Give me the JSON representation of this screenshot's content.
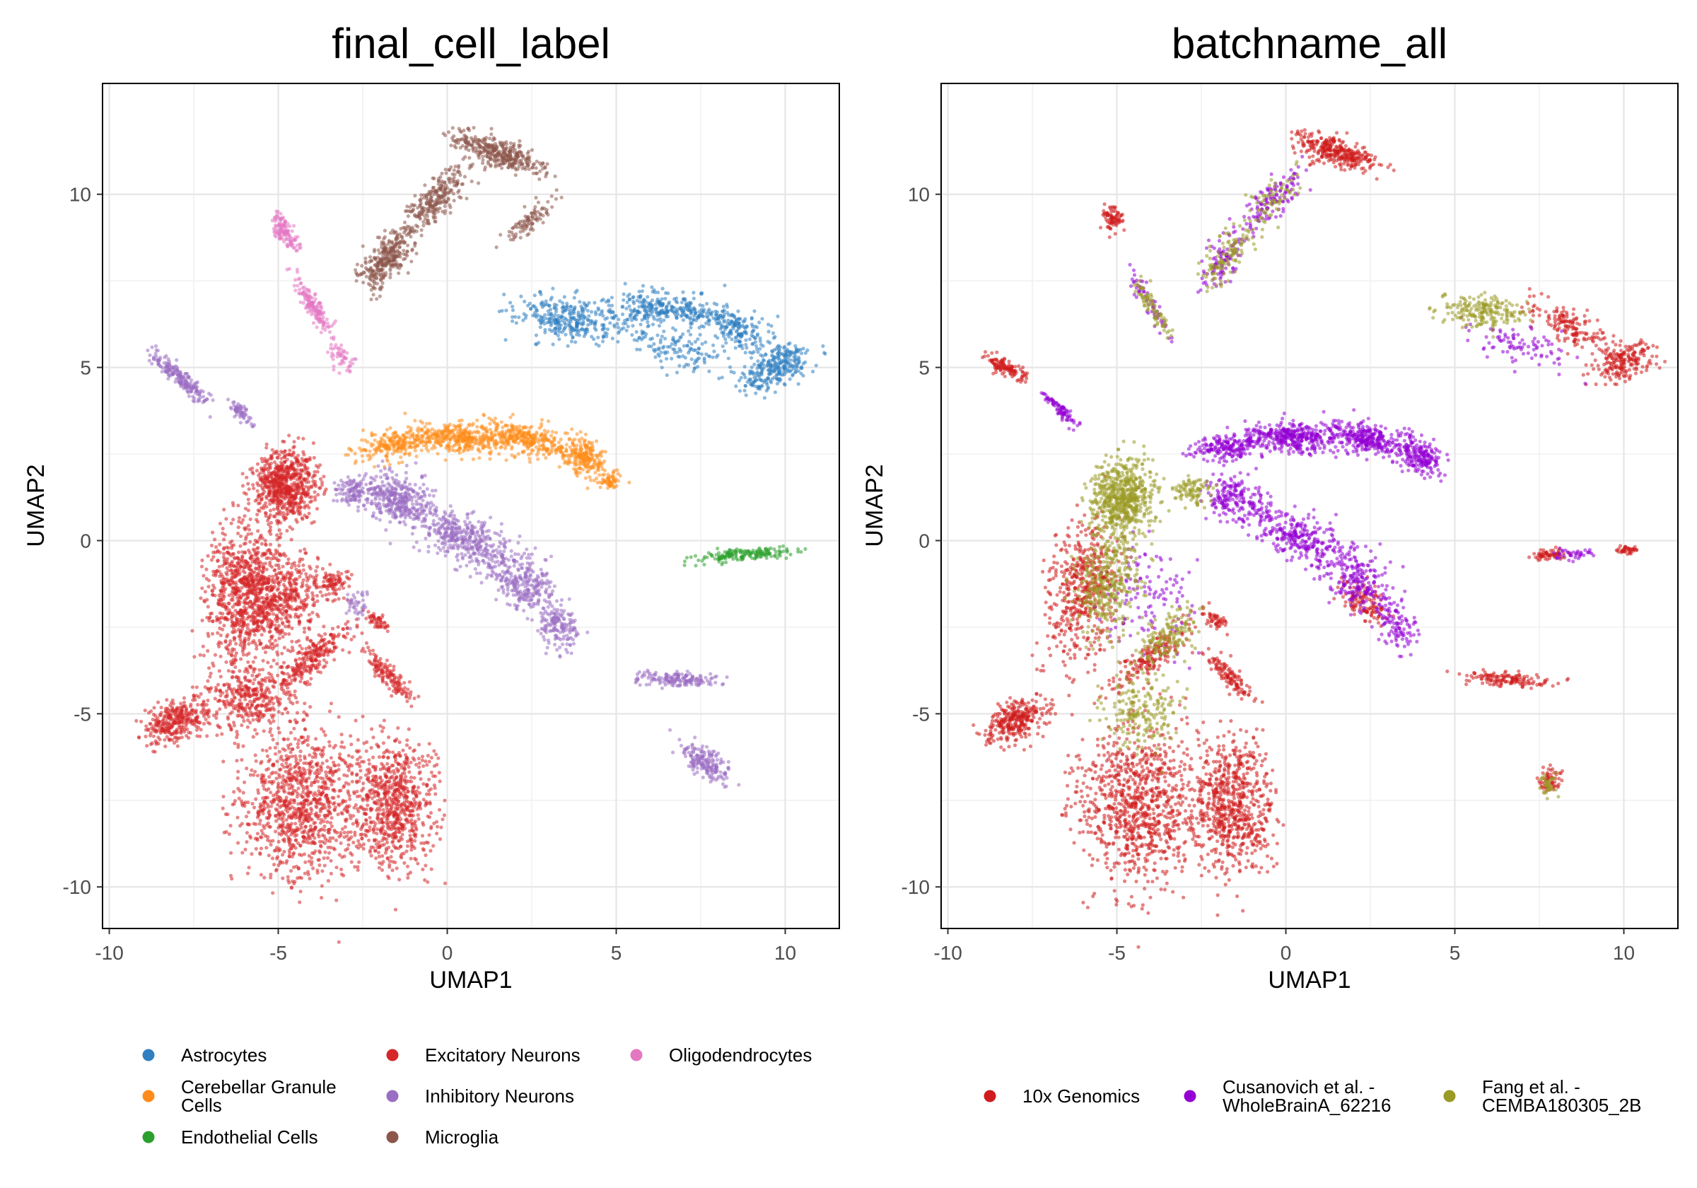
{
  "chart_data": [
    {
      "type": "scatter",
      "title": "final_cell_label",
      "xlabel": "UMAP1",
      "ylabel": "UMAP2",
      "xlim": [
        -10.2,
        11.6
      ],
      "ylim": [
        -11.2,
        13.2
      ],
      "xticks": [
        -10,
        -5,
        0,
        5,
        10
      ],
      "yticks": [
        -10,
        -5,
        0,
        5,
        10
      ],
      "xtick_labels": [
        "-10",
        "-5",
        "0",
        "5",
        "10"
      ],
      "ytick_labels": [
        "-10",
        "-5",
        "0",
        "5",
        "10"
      ],
      "grid": true,
      "legend_position": "bottom",
      "series": [
        {
          "name": "Astrocytes",
          "color": "#2f7fc1",
          "regions": [
            [
              3.6,
              6.4,
              1.6,
              0.55,
              -8,
              320
            ],
            [
              6.3,
              6.7,
              1.4,
              0.45,
              -5,
              260
            ],
            [
              8.4,
              6.2,
              1.2,
              0.45,
              -25,
              220
            ],
            [
              9.9,
              5.1,
              0.5,
              0.9,
              -75,
              220
            ],
            [
              6.9,
              5.5,
              1.5,
              0.5,
              -15,
              120
            ],
            [
              9.1,
              4.6,
              0.6,
              0.45,
              0,
              60
            ]
          ]
        },
        {
          "name": "Cerebellar Granule Cells",
          "color": "#ff8c1a",
          "regions": [
            [
              -1.6,
              2.75,
              1.1,
              0.35,
              10,
              220
            ],
            [
              0.3,
              3.0,
              1.2,
              0.4,
              -3,
              340
            ],
            [
              2.3,
              2.95,
              1.1,
              0.4,
              -12,
              300
            ],
            [
              4.0,
              2.4,
              0.7,
              0.45,
              -35,
              220
            ],
            [
              4.8,
              1.75,
              0.25,
              0.35,
              -80,
              60
            ]
          ]
        },
        {
          "name": "Endothelial Cells",
          "color": "#2ca02c",
          "regions": [
            [
              8.8,
              -0.4,
              1.3,
              0.16,
              5,
              170
            ]
          ]
        },
        {
          "name": "Excitatory Neurons",
          "color": "#d62728",
          "regions": [
            [
              -4.8,
              1.6,
              0.9,
              0.9,
              0,
              700
            ],
            [
              -6.0,
              -1.4,
              1.0,
              1.9,
              -10,
              760
            ],
            [
              -5.0,
              -1.8,
              1.1,
              1.3,
              -30,
              500
            ],
            [
              -5.8,
              -4.6,
              1.2,
              0.8,
              0,
              340
            ],
            [
              -4.4,
              -7.6,
              1.6,
              2.0,
              0,
              1000
            ],
            [
              -1.6,
              -7.6,
              1.1,
              1.7,
              0,
              750
            ],
            [
              -8.0,
              -5.2,
              0.9,
              0.5,
              25,
              320
            ],
            [
              -4.0,
              -3.4,
              1.3,
              0.4,
              40,
              260
            ],
            [
              -1.7,
              -3.9,
              0.9,
              0.25,
              -45,
              140
            ],
            [
              -2.1,
              -2.3,
              0.4,
              0.2,
              -40,
              50
            ],
            [
              -3.4,
              -1.2,
              0.5,
              0.35,
              0,
              90
            ]
          ]
        },
        {
          "name": "Inhibitory Neurons",
          "color": "#9a6ec2",
          "regions": [
            [
              -7.9,
              4.7,
              1.1,
              0.2,
              -40,
              200
            ],
            [
              -6.1,
              3.7,
              0.45,
              0.15,
              -45,
              60
            ],
            [
              -1.5,
              1.2,
              0.9,
              0.6,
              -20,
              360
            ],
            [
              0.4,
              0.1,
              1.3,
              0.6,
              -25,
              380
            ],
            [
              2.2,
              -1.2,
              1.1,
              0.7,
              -35,
              300
            ],
            [
              3.3,
              -2.5,
              0.7,
              0.5,
              -60,
              150
            ],
            [
              -2.8,
              1.4,
              0.5,
              0.35,
              0,
              110
            ],
            [
              6.8,
              -4.0,
              0.2,
              1.1,
              88,
              160
            ],
            [
              7.6,
              -6.4,
              0.35,
              0.7,
              60,
              180
            ],
            [
              -2.7,
              -1.9,
              0.3,
              0.4,
              -30,
              40
            ]
          ]
        },
        {
          "name": "Microglia",
          "color": "#8c564b",
          "regions": [
            [
              -1.8,
              8.1,
              0.9,
              0.45,
              50,
              300
            ],
            [
              -0.4,
              9.8,
              1.2,
              0.4,
              48,
              260
            ],
            [
              1.5,
              11.2,
              1.3,
              0.35,
              -18,
              360
            ],
            [
              2.4,
              9.2,
              0.9,
              0.25,
              40,
              90
            ]
          ]
        },
        {
          "name": "Oligodendrocytes",
          "color": "#e377c2",
          "regions": [
            [
              -4.8,
              8.9,
              0.5,
              0.25,
              -60,
              120
            ],
            [
              -4.0,
              6.8,
              1.0,
              0.2,
              -58,
              150
            ],
            [
              -3.1,
              5.3,
              0.4,
              0.25,
              -40,
              50
            ]
          ]
        }
      ]
    },
    {
      "type": "scatter",
      "title": "batchname_all",
      "xlabel": "UMAP1",
      "ylabel": "UMAP2",
      "xlim": [
        -10.2,
        11.6
      ],
      "ylim": [
        -11.2,
        13.2
      ],
      "xticks": [
        -10,
        -5,
        0,
        5,
        10
      ],
      "yticks": [
        -10,
        -5,
        0,
        5,
        10
      ],
      "xtick_labels": [
        "-10",
        "-5",
        "0",
        "5",
        "10"
      ],
      "ytick_labels": [
        "-10",
        "-5",
        "0",
        "5",
        "10"
      ],
      "grid": true,
      "legend_position": "bottom",
      "series": [
        {
          "name": "10x Genomics",
          "color": "#d01c1c",
          "regions": [
            [
              -6.0,
              -1.4,
              1.0,
              1.9,
              -10,
              500
            ],
            [
              -4.4,
              -7.6,
              1.6,
              2.0,
              0,
              900
            ],
            [
              -1.6,
              -7.6,
              1.1,
              1.7,
              0,
              700
            ],
            [
              -8.0,
              -5.2,
              0.9,
              0.5,
              25,
              300
            ],
            [
              -4.0,
              -3.4,
              1.3,
              0.4,
              40,
              180
            ],
            [
              -1.7,
              -3.9,
              0.9,
              0.25,
              -45,
              120
            ],
            [
              1.5,
              11.2,
              1.3,
              0.35,
              -18,
              330
            ],
            [
              -5.1,
              9.3,
              0.3,
              0.3,
              0,
              80
            ],
            [
              -8.3,
              5.0,
              0.6,
              0.2,
              -30,
              120
            ],
            [
              9.9,
              5.1,
              0.5,
              0.9,
              -75,
              200
            ],
            [
              8.4,
              6.2,
              1.2,
              0.45,
              -25,
              160
            ],
            [
              6.6,
              -4.0,
              0.2,
              1.1,
              88,
              140
            ],
            [
              7.8,
              -0.4,
              0.5,
              0.15,
              5,
              60
            ],
            [
              10.1,
              -0.3,
              0.3,
              0.12,
              0,
              40
            ],
            [
              2.3,
              -1.8,
              0.7,
              0.4,
              -40,
              120
            ],
            [
              -2.1,
              -2.3,
              0.4,
              0.2,
              -40,
              50
            ],
            [
              7.8,
              -6.9,
              0.3,
              0.35,
              0,
              60
            ]
          ]
        },
        {
          "name": "Cusanovich et al. - WholeBrainA_62216",
          "color": "#9400d3",
          "regions": [
            [
              -1.6,
              2.75,
              1.1,
              0.35,
              10,
              220
            ],
            [
              0.3,
              3.0,
              1.2,
              0.4,
              -3,
              340
            ],
            [
              2.3,
              2.95,
              1.1,
              0.4,
              -12,
              300
            ],
            [
              4.0,
              2.4,
              0.7,
              0.45,
              -35,
              200
            ],
            [
              -1.5,
              1.2,
              0.9,
              0.6,
              -20,
              200
            ],
            [
              0.4,
              0.1,
              1.3,
              0.6,
              -25,
              280
            ],
            [
              2.2,
              -1.2,
              1.1,
              0.7,
              -35,
              220
            ],
            [
              3.3,
              -2.5,
              0.7,
              0.5,
              -60,
              100
            ],
            [
              -6.7,
              3.8,
              0.7,
              0.15,
              -45,
              80
            ],
            [
              -4.0,
              6.8,
              1.0,
              0.2,
              -58,
              60
            ],
            [
              -0.4,
              9.8,
              1.2,
              0.4,
              48,
              130
            ],
            [
              -1.8,
              8.1,
              0.9,
              0.45,
              50,
              100
            ],
            [
              7.0,
              5.6,
              1.5,
              0.5,
              -15,
              90
            ],
            [
              8.6,
              -0.4,
              0.6,
              0.15,
              5,
              40
            ],
            [
              -4.0,
              -1.5,
              1.2,
              1.5,
              0,
              120
            ]
          ]
        },
        {
          "name": "Fang et al. - CEMBA180305_2B",
          "color": "#9a9a26",
          "regions": [
            [
              -4.8,
              1.2,
              0.9,
              1.0,
              0,
              650
            ],
            [
              -5.3,
              -1.2,
              0.9,
              1.4,
              -10,
              350
            ],
            [
              -3.5,
              -2.8,
              1.2,
              0.5,
              40,
              160
            ],
            [
              -4.3,
              -5.0,
              1.1,
              0.9,
              0,
              200
            ],
            [
              -1.8,
              8.1,
              0.9,
              0.45,
              50,
              110
            ],
            [
              -0.4,
              9.8,
              1.2,
              0.4,
              48,
              80
            ],
            [
              -4.0,
              6.8,
              1.0,
              0.2,
              -58,
              80
            ],
            [
              5.8,
              6.6,
              1.3,
              0.4,
              -5,
              200
            ],
            [
              7.8,
              -7.0,
              0.25,
              0.3,
              0,
              40
            ],
            [
              -2.8,
              1.4,
              0.6,
              0.4,
              0,
              90
            ]
          ]
        }
      ]
    }
  ]
}
